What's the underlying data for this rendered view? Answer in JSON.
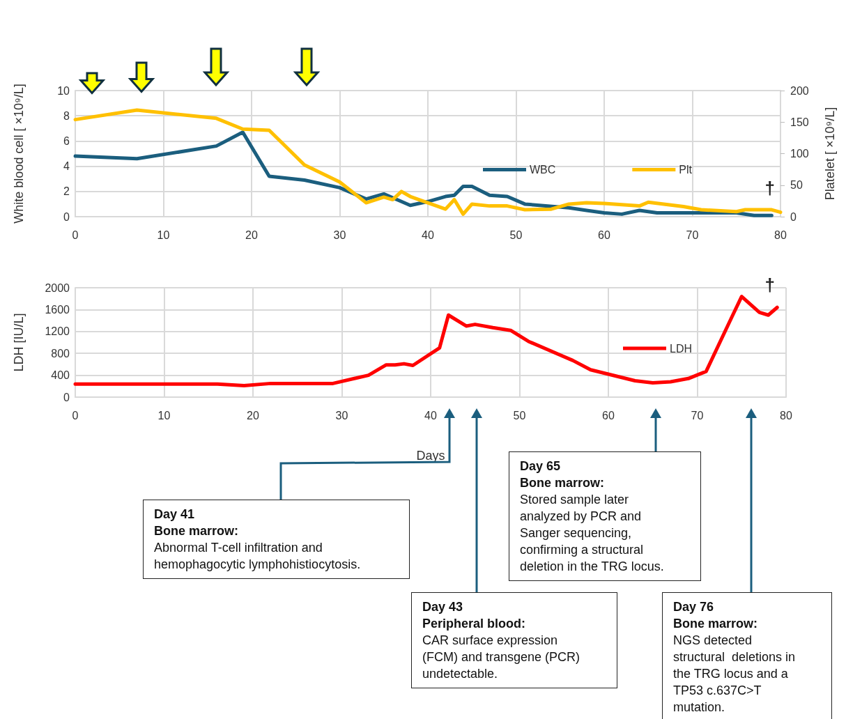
{
  "chart_data": [
    {
      "type": "line",
      "ylabel": "White blood cell [ ×10⁹/L]",
      "y2label": "Platelet [ ×10⁹/L]",
      "xlim": [
        0,
        80
      ],
      "xticks": [
        0,
        10,
        20,
        30,
        40,
        50,
        60,
        70,
        80
      ],
      "ylim": [
        0,
        10
      ],
      "yticks": [
        0,
        2,
        4,
        6,
        8,
        10
      ],
      "y2lim": [
        0,
        200
      ],
      "y2ticks": [
        0,
        50,
        100,
        150,
        200
      ],
      "grid": true,
      "legend": "right",
      "annotations": [
        "†"
      ],
      "series": [
        {
          "name": "WBC",
          "color": "#1b5e7e",
          "x": [
            0,
            7,
            16,
            19,
            22,
            26,
            30,
            33,
            35,
            37,
            38,
            40,
            42,
            43,
            44,
            45,
            47,
            49,
            51,
            56,
            58,
            60,
            62,
            64,
            66,
            70,
            75,
            77,
            79
          ],
          "values": [
            4.8,
            4.6,
            5.6,
            6.7,
            3.2,
            2.9,
            2.3,
            1.4,
            1.8,
            1.2,
            0.9,
            1.2,
            1.6,
            1.7,
            2.4,
            2.4,
            1.7,
            1.6,
            1.0,
            0.7,
            0.5,
            0.3,
            0.2,
            0.5,
            0.3,
            0.3,
            0.3,
            0.1,
            0.1
          ]
        },
        {
          "name": "Plt",
          "color": "#ffc000",
          "axis": "y2",
          "x": [
            0,
            7,
            16,
            19,
            22,
            26,
            30,
            33,
            35,
            36,
            37,
            38,
            42,
            43,
            44,
            45,
            47,
            49,
            51,
            54,
            56,
            58,
            60,
            62,
            64,
            65,
            69,
            71,
            75,
            76,
            79,
            80
          ],
          "values": [
            154,
            169,
            156,
            139,
            137,
            82,
            55,
            22,
            31,
            27,
            40,
            32,
            12,
            27,
            4,
            20,
            17,
            17,
            11,
            12,
            20,
            22,
            21,
            19,
            17,
            23,
            16,
            11,
            8,
            11,
            11,
            7
          ]
        }
      ]
    },
    {
      "type": "line",
      "ylabel": "LDH [IU/L]",
      "xlabel": "Days",
      "xlim": [
        0,
        80
      ],
      "xticks": [
        0,
        10,
        20,
        30,
        40,
        50,
        60,
        70,
        80
      ],
      "ylim": [
        0,
        2000
      ],
      "yticks": [
        0,
        400,
        800,
        1200,
        1600,
        2000
      ],
      "grid": true,
      "legend": "right",
      "annotations": [
        "†",
        "Day 41\nBone marrow:\nAbnormal T-cell infiltration and\nhemophagocytic lymphohistiocytosis.",
        "Day 43\nPeripheral blood:\nCAR surface expression\n(FCM) and transgene (PCR)\nundetectable.",
        "Day 65\nBone marrow:\nStored sample later\nanalyzed by PCR and\nSanger sequencing,\nconfirming a structural\ndeletion in the TRG locus.",
        "Day 76\nBone marrow:\nNGS detected\nstructural  deletions in\nthe TRG locus and a\nTP53 c.637C>T\nmutation."
      ],
      "series": [
        {
          "name": "LDH",
          "color": "#ff0000",
          "x": [
            0,
            16,
            19,
            22,
            29,
            33,
            35,
            36,
            37,
            38,
            41,
            42,
            44,
            45,
            47,
            49,
            51,
            56,
            58,
            63,
            65,
            67,
            69,
            71,
            74,
            75,
            77,
            78,
            79
          ],
          "values": [
            240,
            240,
            210,
            250,
            250,
            400,
            590,
            590,
            610,
            580,
            900,
            1500,
            1300,
            1330,
            1270,
            1220,
            1020,
            670,
            500,
            300,
            260,
            280,
            340,
            470,
            1500,
            1840,
            1550,
            1500,
            1640
          ]
        }
      ]
    }
  ]
}
